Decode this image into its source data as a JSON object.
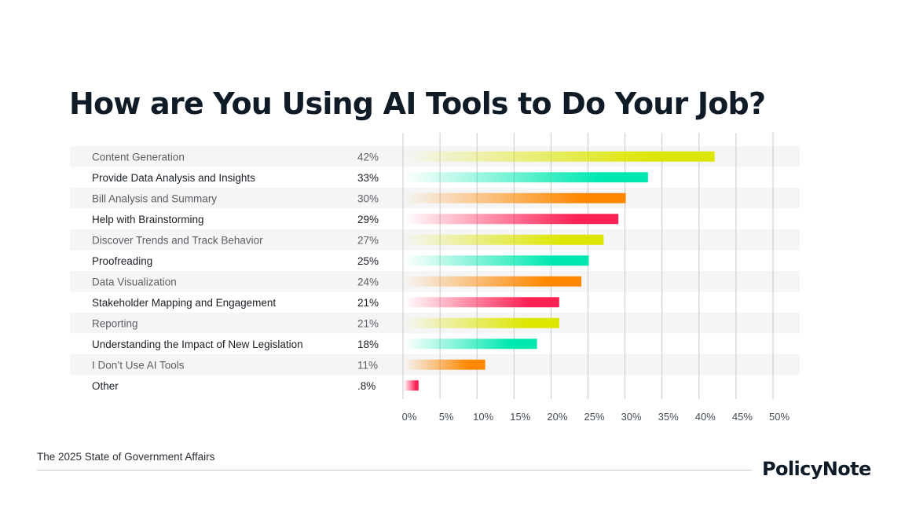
{
  "header": {
    "title": "How are You Using AI Tools to Do Your Job?"
  },
  "footer": {
    "source": "The 2025 State of Government Affairs",
    "logo_text": "PolicyNote"
  },
  "colors": {
    "text_dark": "#1a1f26",
    "text_muted": "#5a5f66",
    "stripe": "#f5f5f5",
    "grid": "#c8c8c8",
    "palette": [
      "#dde600",
      "#00e8b0",
      "#ff8800",
      "#ff2255"
    ]
  },
  "chart_data": {
    "type": "bar",
    "orientation": "horizontal",
    "title": "How are You Using AI Tools to Do Your Job?",
    "xlabel": "",
    "ylabel": "",
    "xlim": [
      0,
      50
    ],
    "grid": true,
    "x_ticks": [
      "0%",
      "5%",
      "10%",
      "15%",
      "20%",
      "25%",
      "30%",
      "35%",
      "40%",
      "45%",
      "50%"
    ],
    "categories": [
      "Content Generation",
      "Provide Data Analysis and Insights",
      "Bill Analysis and Summary",
      "Help with Brainstorming",
      "Discover Trends and Track Behavior",
      "Proofreading",
      "Data Visualization",
      "Stakeholder Mapping and Engagement",
      "Reporting",
      "Understanding the Impact of New Legislation",
      "I Don’t Use AI Tools",
      "Other"
    ],
    "values": [
      42,
      33,
      30,
      29,
      27,
      25,
      24,
      21,
      21,
      18,
      11,
      0.8
    ],
    "value_labels": [
      "42%",
      "33%",
      "30%",
      "29%",
      "27%",
      "25%",
      "24%",
      "21%",
      "21%",
      "18%",
      "11%",
      ".8%"
    ]
  }
}
